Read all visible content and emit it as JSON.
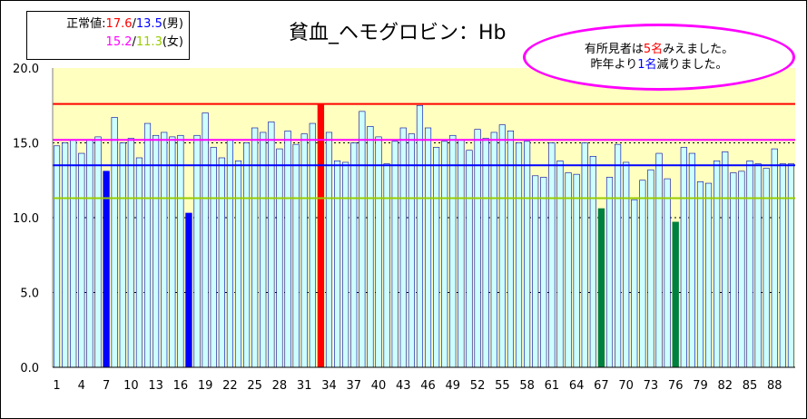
{
  "chart_data": {
    "type": "bar",
    "title": "貧血_ヘモグロビン：Hb",
    "ylim": [
      0,
      20
    ],
    "y_ticks": [
      "0.0",
      "5.0",
      "10.0",
      "15.0",
      "20.0"
    ],
    "x_ticks": [
      "1",
      "4",
      "7",
      "10",
      "13",
      "16",
      "19",
      "22",
      "25",
      "28",
      "31",
      "34",
      "37",
      "40",
      "43",
      "46",
      "49",
      "52",
      "55",
      "58",
      "61",
      "64",
      "67",
      "70",
      "73",
      "76",
      "79",
      "82",
      "85",
      "88"
    ],
    "values": [
      14.8,
      15.0,
      15.2,
      14.3,
      15.2,
      15.4,
      13.1,
      16.7,
      15.0,
      15.3,
      14.0,
      16.3,
      15.5,
      15.7,
      15.4,
      15.5,
      10.3,
      15.5,
      17.0,
      14.7,
      14.0,
      15.2,
      13.8,
      15.0,
      16.0,
      15.7,
      16.4,
      14.6,
      15.8,
      14.9,
      15.6,
      16.3,
      17.6,
      15.7,
      13.8,
      13.7,
      15.0,
      17.1,
      16.1,
      15.4,
      13.6,
      15.1,
      16.0,
      15.6,
      17.5,
      16.0,
      14.7,
      15.1,
      15.5,
      15.2,
      14.5,
      15.9,
      15.3,
      15.7,
      16.2,
      15.8,
      15.0,
      15.1,
      12.8,
      12.7,
      15.0,
      13.8,
      13.0,
      12.9,
      15.0,
      14.1,
      10.6,
      12.7,
      14.9,
      13.7,
      11.2,
      12.5,
      13.2,
      14.3,
      12.6,
      9.7,
      14.7,
      14.3,
      12.4,
      12.3,
      13.8,
      14.4,
      13.0,
      13.1,
      13.8,
      13.6,
      13.3,
      14.6,
      13.6,
      13.6
    ],
    "highlights": [
      {
        "index": 7,
        "color": "#0000ff"
      },
      {
        "index": 17,
        "color": "#0000ff"
      },
      {
        "index": 33,
        "color": "#ff0000"
      },
      {
        "index": 67,
        "color": "#008040"
      },
      {
        "index": 76,
        "color": "#008040"
      }
    ],
    "reference_lines": [
      {
        "value": 17.6,
        "color": "#ff0000"
      },
      {
        "value": 15.2,
        "color": "#ff00ff"
      },
      {
        "value": 13.5,
        "color": "#0000ff"
      },
      {
        "value": 11.3,
        "color": "#99cc00"
      }
    ],
    "bar_color": "#ccffff",
    "bar_edge_color": "#0000a0",
    "plot_bg": "#ffffc0",
    "grid": true
  },
  "normal_values": {
    "label": "正常値:",
    "male_high": "17.6",
    "male_low": "13.5",
    "male_label": "(男)",
    "female_high": "15.2",
    "female_low": "11.3",
    "female_label": "(女)",
    "sep": "/"
  },
  "note": {
    "line1_a": "有所見者は",
    "line1_num": "5名",
    "line1_b": "みえました。",
    "line2_a": "昨年より",
    "line2_num": "1名",
    "line2_b": "減りました。"
  },
  "colors": {
    "red": "#ff0000",
    "blue": "#0000ff",
    "magenta": "#ff00ff",
    "yellow_green": "#99cc00"
  }
}
